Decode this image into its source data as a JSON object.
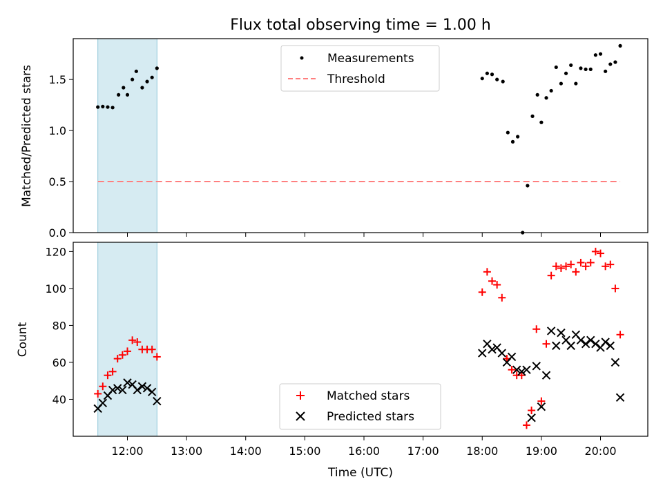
{
  "chart_data": [
    {
      "type": "scatter",
      "title": "Flux total observing time = 1.00 h",
      "xlabel": "",
      "ylabel": "Matched/Predicted stars",
      "xlim": [
        "11:05",
        "20:48"
      ],
      "ylim": [
        0,
        1.9
      ],
      "yticks": [
        "0.0",
        "0.5",
        "1.0",
        "1.5"
      ],
      "shaded_span": [
        "11:30",
        "12:30"
      ],
      "legend_position": "top-center",
      "series": [
        {
          "name": "Measurements",
          "marker": "dot",
          "color": "#000000",
          "points": [
            [
              "11:30",
              1.23
            ],
            [
              "11:35",
              1.235
            ],
            [
              "11:40",
              1.23
            ],
            [
              "11:45",
              1.225
            ],
            [
              "11:51",
              1.35
            ],
            [
              "11:56",
              1.42
            ],
            [
              "12:00",
              1.35
            ],
            [
              "12:05",
              1.5
            ],
            [
              "12:09",
              1.58
            ],
            [
              "12:15",
              1.42
            ],
            [
              "12:20",
              1.48
            ],
            [
              "12:25",
              1.52
            ],
            [
              "12:30",
              1.61
            ],
            [
              "18:00",
              1.51
            ],
            [
              "18:05",
              1.56
            ],
            [
              "18:10",
              1.55
            ],
            [
              "18:15",
              1.5
            ],
            [
              "18:21",
              1.48
            ],
            [
              "18:26",
              0.98
            ],
            [
              "18:31",
              0.89
            ],
            [
              "18:36",
              0.94
            ],
            [
              "18:41",
              0.0
            ],
            [
              "18:46",
              0.46
            ],
            [
              "18:51",
              1.14
            ],
            [
              "18:56",
              1.35
            ],
            [
              "19:00",
              1.08
            ],
            [
              "19:05",
              1.32
            ],
            [
              "19:10",
              1.39
            ],
            [
              "19:15",
              1.62
            ],
            [
              "19:20",
              1.46
            ],
            [
              "19:25",
              1.56
            ],
            [
              "19:30",
              1.64
            ],
            [
              "19:35",
              1.46
            ],
            [
              "19:40",
              1.61
            ],
            [
              "19:45",
              1.6
            ],
            [
              "19:50",
              1.6
            ],
            [
              "19:55",
              1.74
            ],
            [
              "20:00",
              1.75
            ],
            [
              "20:05",
              1.58
            ],
            [
              "20:10",
              1.65
            ],
            [
              "20:15",
              1.67
            ],
            [
              "20:20",
              1.83
            ]
          ]
        },
        {
          "name": "Threshold",
          "marker": "dashed-line",
          "color": "#ff7f7f",
          "points": [
            [
              "11:30",
              0.5
            ],
            [
              "20:20",
              0.5
            ]
          ]
        }
      ]
    },
    {
      "type": "scatter",
      "title": "",
      "xlabel": "Time (UTC)",
      "ylabel": "Count",
      "xlim": [
        "11:05",
        "20:48"
      ],
      "ylim": [
        20,
        125
      ],
      "yticks": [
        "40",
        "60",
        "80",
        "100",
        "120"
      ],
      "xticks": [
        "12:00",
        "13:00",
        "14:00",
        "15:00",
        "16:00",
        "17:00",
        "18:00",
        "19:00",
        "20:00"
      ],
      "shaded_span": [
        "11:30",
        "12:30"
      ],
      "legend_position": "bottom-center",
      "series": [
        {
          "name": "Matched stars",
          "marker": "plus",
          "color": "#ff0000",
          "points": [
            [
              "11:30",
              43
            ],
            [
              "11:35",
              47
            ],
            [
              "11:40",
              53
            ],
            [
              "11:45",
              55
            ],
            [
              "11:50",
              62
            ],
            [
              "11:55",
              64
            ],
            [
              "12:00",
              66
            ],
            [
              "12:05",
              72
            ],
            [
              "12:10",
              71
            ],
            [
              "12:15",
              67
            ],
            [
              "12:20",
              67
            ],
            [
              "12:25",
              67
            ],
            [
              "12:30",
              63
            ],
            [
              "18:00",
              98
            ],
            [
              "18:05",
              109
            ],
            [
              "18:10",
              104
            ],
            [
              "18:15",
              102
            ],
            [
              "18:20",
              95
            ],
            [
              "18:25",
              62
            ],
            [
              "18:30",
              56
            ],
            [
              "18:35",
              53
            ],
            [
              "18:40",
              53
            ],
            [
              "18:45",
              26
            ],
            [
              "18:50",
              34
            ],
            [
              "18:55",
              78
            ],
            [
              "19:00",
              39
            ],
            [
              "19:05",
              70
            ],
            [
              "19:10",
              107
            ],
            [
              "19:15",
              112
            ],
            [
              "19:20",
              111
            ],
            [
              "19:25",
              112
            ],
            [
              "19:30",
              113
            ],
            [
              "19:35",
              109
            ],
            [
              "19:40",
              114
            ],
            [
              "19:45",
              112
            ],
            [
              "19:50",
              114
            ],
            [
              "19:55",
              120
            ],
            [
              "20:00",
              119
            ],
            [
              "20:05",
              112
            ],
            [
              "20:10",
              113
            ],
            [
              "20:15",
              100
            ],
            [
              "20:20",
              75
            ]
          ]
        },
        {
          "name": "Predicted stars",
          "marker": "x",
          "color": "#000000",
          "points": [
            [
              "11:30",
              35
            ],
            [
              "11:35",
              38
            ],
            [
              "11:40",
              42
            ],
            [
              "11:45",
              45
            ],
            [
              "11:50",
              46
            ],
            [
              "11:55",
              45
            ],
            [
              "12:00",
              49
            ],
            [
              "12:05",
              48
            ],
            [
              "12:10",
              45
            ],
            [
              "12:15",
              47
            ],
            [
              "12:20",
              46
            ],
            [
              "12:25",
              44
            ],
            [
              "12:30",
              39
            ],
            [
              "18:00",
              65
            ],
            [
              "18:05",
              70
            ],
            [
              "18:10",
              67
            ],
            [
              "18:15",
              68
            ],
            [
              "18:20",
              65
            ],
            [
              "18:25",
              60
            ],
            [
              "18:30",
              63
            ],
            [
              "18:35",
              56
            ],
            [
              "18:40",
              55
            ],
            [
              "18:45",
              56
            ],
            [
              "18:50",
              30
            ],
            [
              "18:55",
              58
            ],
            [
              "19:00",
              36
            ],
            [
              "19:05",
              53
            ],
            [
              "19:10",
              77
            ],
            [
              "19:15",
              69
            ],
            [
              "19:20",
              76
            ],
            [
              "19:25",
              72
            ],
            [
              "19:30",
              69
            ],
            [
              "19:35",
              75
            ],
            [
              "19:40",
              72
            ],
            [
              "19:45",
              70
            ],
            [
              "19:50",
              72
            ],
            [
              "19:55",
              70
            ],
            [
              "20:00",
              68
            ],
            [
              "20:05",
              71
            ],
            [
              "20:10",
              69
            ],
            [
              "20:15",
              60
            ],
            [
              "20:20",
              41
            ]
          ]
        }
      ]
    }
  ]
}
